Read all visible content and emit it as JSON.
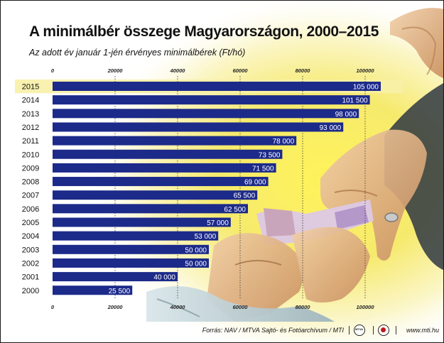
{
  "title": "A minimálbér összege Magyarországon, 2000–2015",
  "subtitle": "Az adott év január 1-jén érvényes minimálbérek (Ft/hó)",
  "chart_data": {
    "type": "bar",
    "orientation": "horizontal",
    "categories": [
      "2015",
      "2014",
      "2013",
      "2012",
      "2011",
      "2010",
      "2009",
      "2008",
      "2007",
      "2006",
      "2005",
      "2004",
      "2003",
      "2002",
      "2001",
      "2000"
    ],
    "values": [
      105000,
      101500,
      98000,
      93000,
      78000,
      73500,
      71500,
      69000,
      65500,
      62500,
      57000,
      53000,
      50000,
      50000,
      40000,
      25500
    ],
    "value_labels": [
      "105 000",
      "101 500",
      "98 000",
      "93 000",
      "78 000",
      "73 500",
      "71 500",
      "69 000",
      "65 500",
      "62 500",
      "57 000",
      "53 000",
      "50 000",
      "50 000",
      "40 000",
      "25 500"
    ],
    "x_ticks": [
      "0",
      "20000",
      "40000",
      "60000",
      "80000",
      "100000"
    ],
    "xlim": [
      0,
      100000
    ],
    "highlight_category": "2015",
    "bar_color": "#1c2a8a",
    "highlight_color": "#f7f0a6",
    "grid": true,
    "xlabel": "",
    "ylabel": ""
  },
  "footer": {
    "source": "Forrás: NAV / MTVA Sajtó- és Fotóarchívum / MTI",
    "logo1_text": "MTVA",
    "website": "www.mti.hu"
  },
  "colors": {
    "accent_yellow": "#f2e02a",
    "accent_red": "#c0181d"
  }
}
